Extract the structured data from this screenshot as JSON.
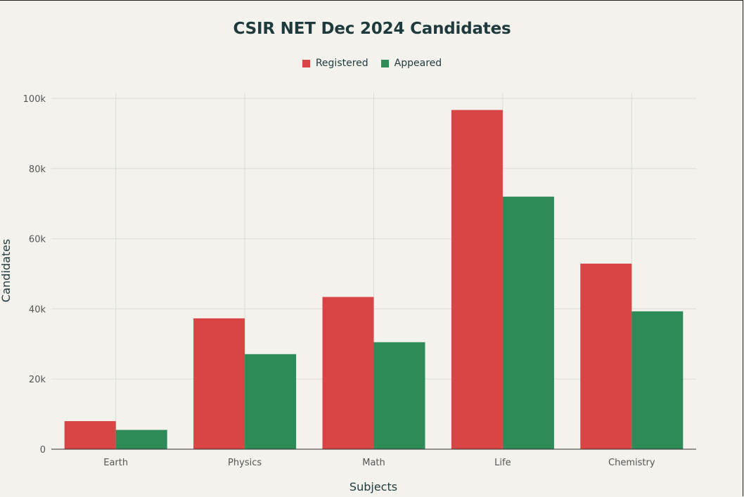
{
  "chart_data": {
    "type": "bar",
    "title": "CSIR NET Dec 2024 Candidates",
    "xlabel": "Subjects",
    "ylabel": "Candidates",
    "categories": [
      "Earth",
      "Physics",
      "Math",
      "Life",
      "Chemistry"
    ],
    "series": [
      {
        "name": "Registered",
        "color": "#d94545",
        "values": [
          8000,
          37300,
          43400,
          96700,
          52900
        ]
      },
      {
        "name": "Appeared",
        "color": "#2e8a57",
        "values": [
          5500,
          27100,
          30500,
          72000,
          39300
        ]
      }
    ],
    "ylim": [
      0,
      100000
    ],
    "yticks": [
      0,
      20000,
      40000,
      60000,
      80000,
      100000
    ],
    "ytick_labels": [
      "0",
      "20k",
      "40k",
      "60k",
      "80k",
      "100k"
    ],
    "grid": true,
    "legend_position": "top-center"
  }
}
